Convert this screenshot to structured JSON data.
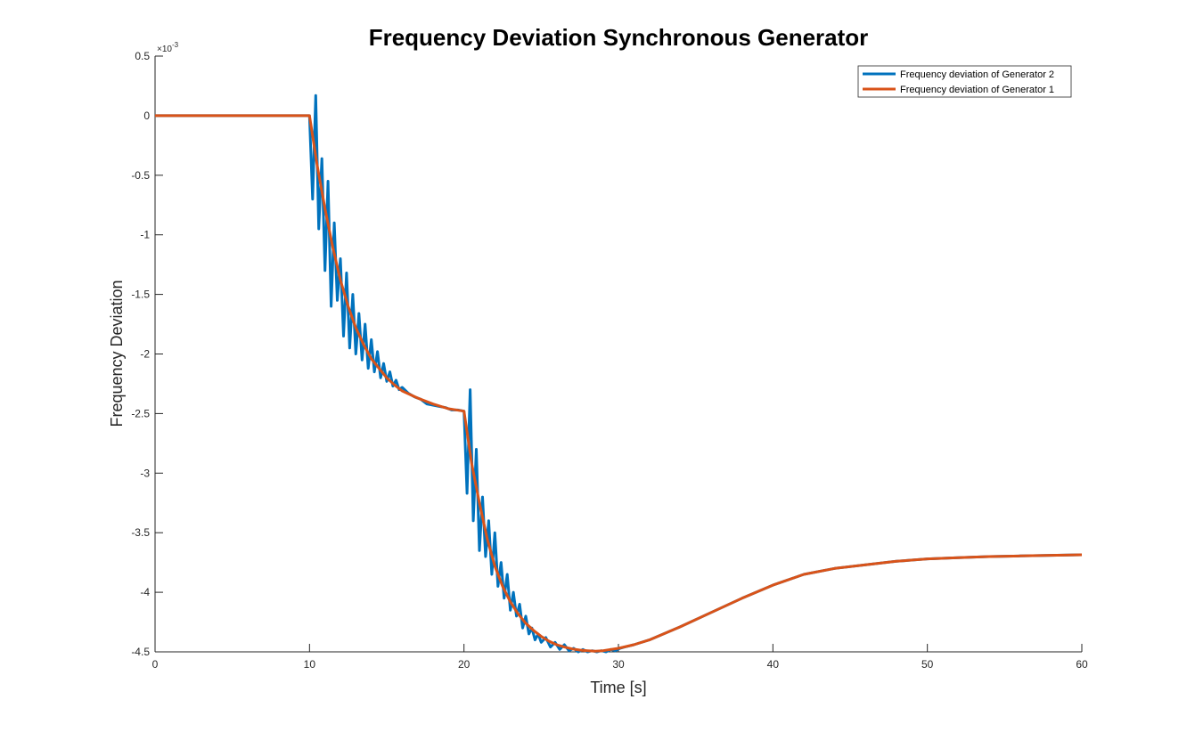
{
  "chart_data": {
    "type": "line",
    "title": "Frequency Deviation Synchronous Generator",
    "xlabel": "Time [s]",
    "ylabel": "Frequency Deviation",
    "y_exponent_label": "×10",
    "y_exponent_power": "-3",
    "xlim": [
      0,
      60
    ],
    "ylim": [
      -4.5,
      0.5
    ],
    "y_scale_note": "values in units of 10^-3",
    "x_ticks": [
      0,
      10,
      20,
      30,
      40,
      50,
      60
    ],
    "x_tick_labels": [
      "0",
      "10",
      "20",
      "30",
      "40",
      "50",
      "60"
    ],
    "y_ticks": [
      0.5,
      0,
      -0.5,
      -1,
      -1.5,
      -2,
      -2.5,
      -3,
      -3.5,
      -4,
      -4.5
    ],
    "y_tick_labels": [
      "0.5",
      "0",
      "-0.5",
      "-1",
      "-1.5",
      "-2",
      "-2.5",
      "-3",
      "-3.5",
      "-4",
      "-4.5"
    ],
    "grid": false,
    "legend_position": "top-right",
    "series": [
      {
        "name": "Frequency deviation of Generator 2",
        "color": "#0072BD",
        "description_points": {
          "x": [
            0,
            10,
            10.2,
            10.4,
            10.6,
            10.8,
            11.0,
            11.2,
            11.4,
            11.6,
            11.8,
            12.0,
            12.2,
            12.4,
            12.6,
            12.8,
            13.0,
            13.2,
            13.4,
            13.6,
            13.8,
            14.0,
            14.2,
            14.4,
            14.6,
            14.8,
            15.0,
            15.2,
            15.4,
            15.6,
            15.8,
            16.0,
            16.4,
            16.8,
            17.2,
            17.6,
            18.0,
            18.4,
            18.8,
            19.2,
            19.6,
            20.0,
            20.2,
            20.4,
            20.6,
            20.8,
            21.0,
            21.2,
            21.4,
            21.6,
            21.8,
            22.0,
            22.2,
            22.4,
            22.6,
            22.8,
            23.0,
            23.2,
            23.4,
            23.6,
            23.8,
            24.0,
            24.2,
            24.4,
            24.6,
            24.8,
            25.0,
            25.3,
            25.6,
            25.9,
            26.2,
            26.5,
            26.8,
            27.1,
            27.4,
            27.7,
            28.0,
            28.3,
            28.6,
            28.9,
            29.2,
            29.5,
            29.8,
            30.1,
            30.4,
            30.7,
            31.0,
            32,
            34,
            36,
            38,
            40,
            42,
            44,
            46,
            48,
            50,
            52,
            54,
            56,
            58,
            60
          ],
          "y": [
            0,
            0,
            -0.7,
            0.17,
            -0.95,
            -0.36,
            -1.3,
            -0.55,
            -1.6,
            -0.9,
            -1.55,
            -1.2,
            -1.85,
            -1.32,
            -1.95,
            -1.5,
            -2.0,
            -1.66,
            -2.05,
            -1.75,
            -2.12,
            -1.88,
            -2.15,
            -1.98,
            -2.2,
            -2.08,
            -2.23,
            -2.15,
            -2.27,
            -2.22,
            -2.3,
            -2.28,
            -2.33,
            -2.36,
            -2.38,
            -2.42,
            -2.43,
            -2.44,
            -2.45,
            -2.47,
            -2.47,
            -2.48,
            -3.17,
            -2.3,
            -3.4,
            -2.8,
            -3.65,
            -3.2,
            -3.7,
            -3.4,
            -3.85,
            -3.5,
            -3.95,
            -3.75,
            -4.05,
            -3.85,
            -4.15,
            -4.0,
            -4.2,
            -4.1,
            -4.3,
            -4.2,
            -4.35,
            -4.3,
            -4.4,
            -4.35,
            -4.42,
            -4.38,
            -4.46,
            -4.42,
            -4.48,
            -4.44,
            -4.49,
            -4.47,
            -4.5,
            -4.48,
            -4.5,
            -4.49,
            -4.5,
            -4.49,
            -4.5,
            -4.48,
            -4.49,
            -4.47,
            -4.46,
            -4.45,
            -4.44,
            -4.4,
            -4.29,
            -4.17,
            -4.05,
            -3.94,
            -3.85,
            -3.8,
            -3.77,
            -3.74,
            -3.72,
            -3.71,
            -3.7,
            -3.695,
            -3.69,
            -3.685
          ]
        }
      },
      {
        "name": "Frequency deviation of Generator 1",
        "color": "#D95319",
        "description_points": {
          "x": [
            0,
            10,
            10.5,
            11,
            11.5,
            12,
            12.5,
            13,
            13.5,
            14,
            14.5,
            15,
            15.5,
            16,
            17,
            18,
            19,
            20,
            20.5,
            21,
            21.5,
            22,
            22.5,
            23,
            23.5,
            24,
            24.5,
            25,
            25.5,
            26,
            26.5,
            27,
            27.5,
            28,
            28.5,
            29,
            29.5,
            30,
            31,
            32,
            34,
            36,
            38,
            40,
            42,
            44,
            46,
            48,
            50,
            52,
            54,
            56,
            58,
            60
          ],
          "y": [
            0,
            0,
            -0.42,
            -0.78,
            -1.1,
            -1.38,
            -1.6,
            -1.78,
            -1.92,
            -2.04,
            -2.12,
            -2.2,
            -2.26,
            -2.31,
            -2.37,
            -2.42,
            -2.46,
            -2.48,
            -2.92,
            -3.25,
            -3.55,
            -3.78,
            -3.95,
            -4.08,
            -4.18,
            -4.26,
            -4.32,
            -4.37,
            -4.41,
            -4.44,
            -4.46,
            -4.475,
            -4.485,
            -4.49,
            -4.495,
            -4.49,
            -4.48,
            -4.47,
            -4.44,
            -4.4,
            -4.29,
            -4.17,
            -4.05,
            -3.94,
            -3.85,
            -3.8,
            -3.77,
            -3.74,
            -3.72,
            -3.71,
            -3.7,
            -3.695,
            -3.69,
            -3.685
          ]
        }
      }
    ]
  }
}
